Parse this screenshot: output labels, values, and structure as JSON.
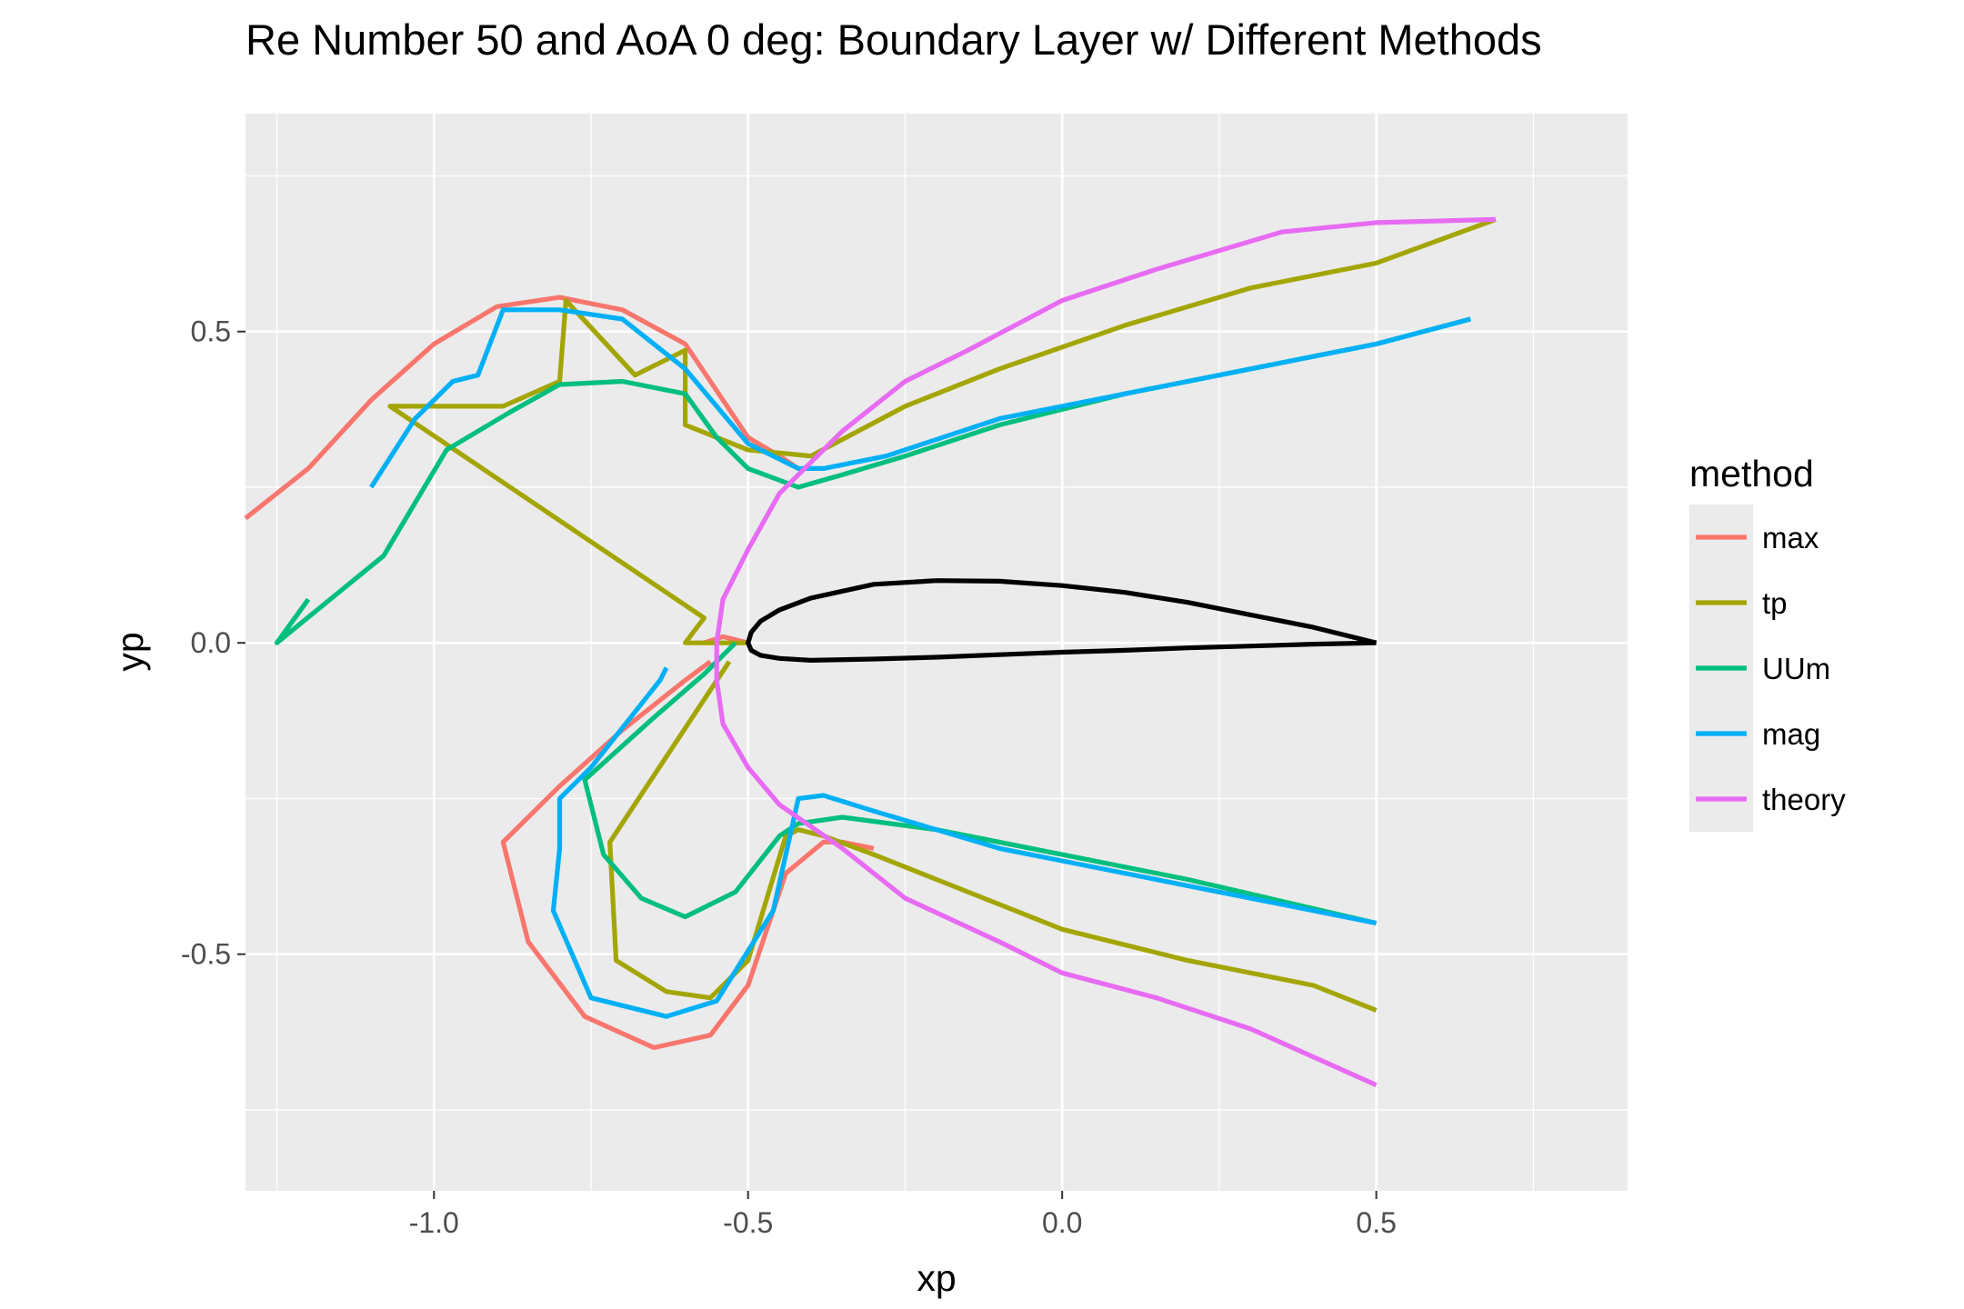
{
  "chart_data": {
    "type": "line",
    "title": "Re Number 50 and AoA 0 deg: Boundary Layer w/ Different Methods",
    "xlabel": "xp",
    "ylabel": "yp",
    "xlim": [
      -1.3,
      0.9
    ],
    "ylim": [
      -0.88,
      0.85
    ],
    "x_ticks": [
      -1.0,
      -0.5,
      0.0,
      0.5
    ],
    "x_tick_labels": [
      "-1.0",
      "-0.5",
      "0.0",
      "0.5"
    ],
    "y_ticks": [
      -0.5,
      0.0,
      0.5
    ],
    "y_tick_labels": [
      "-0.5",
      "0.0",
      "0.5"
    ],
    "grid": true,
    "legend": {
      "title": "method",
      "placement": "right"
    },
    "airfoil": {
      "color": "#000000",
      "x": [
        0.5,
        0.4,
        0.3,
        0.2,
        0.1,
        0.0,
        -0.1,
        -0.2,
        -0.3,
        -0.4,
        -0.45,
        -0.48,
        -0.495,
        -0.5,
        -0.495,
        -0.48,
        -0.45,
        -0.4,
        -0.3,
        -0.2,
        -0.1,
        0.0,
        0.1,
        0.2,
        0.3,
        0.4,
        0.5
      ],
      "y": [
        0.0,
        0.025,
        0.045,
        0.065,
        0.081,
        0.092,
        0.099,
        0.1,
        0.094,
        0.072,
        0.053,
        0.035,
        0.017,
        0.0,
        -0.012,
        -0.02,
        -0.025,
        -0.028,
        -0.026,
        -0.023,
        -0.019,
        -0.015,
        -0.012,
        -0.008,
        -0.005,
        -0.002,
        0.0
      ]
    },
    "series": [
      {
        "name": "max",
        "color": "#F8766D",
        "x": [
          -1.3,
          -1.2,
          -1.1,
          -1.0,
          -0.9,
          -0.8,
          -0.7,
          -0.6,
          -0.5,
          -0.45,
          -0.42,
          null,
          -0.57,
          -0.54,
          -0.5,
          null,
          -0.56,
          -0.6,
          -0.7,
          -0.8,
          -0.89,
          -0.85,
          -0.76,
          -0.65,
          -0.56,
          -0.5,
          -0.44,
          -0.38,
          -0.35,
          -0.3
        ],
        "y": [
          0.2,
          0.28,
          0.39,
          0.48,
          0.54,
          0.555,
          0.535,
          0.48,
          0.33,
          0.3,
          0.28,
          null,
          0.0,
          0.01,
          0.0,
          null,
          -0.03,
          -0.06,
          -0.14,
          -0.23,
          -0.32,
          -0.48,
          -0.6,
          -0.65,
          -0.63,
          -0.55,
          -0.37,
          -0.32,
          -0.32,
          -0.33
        ]
      },
      {
        "name": "tp",
        "color": "#A3A500",
        "x": [
          0.69,
          0.5,
          0.3,
          0.1,
          -0.1,
          -0.25,
          -0.4,
          -0.5,
          -0.6,
          -0.6,
          -0.68,
          -0.79,
          -0.8,
          -0.89,
          -1.07,
          -0.57,
          -0.6,
          -0.5,
          null,
          -0.53,
          -0.72,
          -0.71,
          -0.63,
          -0.56,
          -0.5,
          -0.44,
          -0.42,
          -0.38,
          -0.3,
          -0.2,
          0.0,
          0.2,
          0.4,
          0.5
        ],
        "y": [
          0.68,
          0.61,
          0.57,
          0.51,
          0.44,
          0.38,
          0.3,
          0.31,
          0.35,
          0.47,
          0.43,
          0.55,
          0.42,
          0.38,
          0.38,
          0.04,
          0.0,
          0.0,
          null,
          -0.03,
          -0.32,
          -0.51,
          -0.56,
          -0.57,
          -0.51,
          -0.31,
          -0.3,
          -0.31,
          -0.34,
          -0.38,
          -0.46,
          -0.51,
          -0.55,
          -0.59
        ]
      },
      {
        "name": "UUm",
        "color": "#00BF7D",
        "x": [
          0.65,
          0.5,
          0.3,
          0.1,
          -0.1,
          -0.25,
          -0.35,
          -0.42,
          -0.5,
          -0.55,
          -0.6,
          -0.7,
          -0.8,
          -0.88,
          -0.98,
          -1.08,
          -1.25,
          -1.2,
          null,
          -0.52,
          -0.57,
          -0.65,
          -0.76,
          -0.73,
          -0.67,
          -0.6,
          -0.52,
          -0.45,
          -0.42,
          -0.35,
          -0.2,
          0.0,
          0.2,
          0.5
        ],
        "y": [
          0.52,
          0.48,
          0.44,
          0.4,
          0.35,
          0.3,
          0.27,
          0.25,
          0.28,
          0.33,
          0.4,
          0.42,
          0.415,
          0.37,
          0.31,
          0.14,
          0.0,
          0.07,
          null,
          0.0,
          -0.05,
          -0.12,
          -0.22,
          -0.34,
          -0.41,
          -0.44,
          -0.4,
          -0.31,
          -0.29,
          -0.28,
          -0.3,
          -0.34,
          -0.38,
          -0.45
        ]
      },
      {
        "name": "mag",
        "color": "#00B0F6",
        "x": [
          0.65,
          0.5,
          0.3,
          0.1,
          -0.1,
          -0.28,
          -0.38,
          -0.42,
          -0.5,
          -0.6,
          -0.7,
          -0.8,
          -0.89,
          -0.93,
          -0.97,
          -1.03,
          -1.1,
          null,
          -0.63,
          -0.64,
          -0.75,
          -0.8,
          -0.8,
          -0.81,
          -0.75,
          -0.63,
          -0.55,
          -0.46,
          -0.42,
          -0.38,
          -0.3,
          -0.1,
          0.0,
          0.2,
          0.5
        ],
        "y": [
          0.52,
          0.48,
          0.44,
          0.4,
          0.36,
          0.3,
          0.28,
          0.28,
          0.32,
          0.44,
          0.52,
          0.535,
          0.535,
          0.43,
          0.42,
          0.36,
          0.25,
          null,
          -0.04,
          -0.06,
          -0.2,
          -0.25,
          -0.33,
          -0.43,
          -0.57,
          -0.6,
          -0.575,
          -0.43,
          -0.25,
          -0.245,
          -0.27,
          -0.33,
          -0.35,
          -0.39,
          -0.45
        ]
      },
      {
        "name": "theory",
        "color": "#E76BF3",
        "x": [
          0.69,
          0.5,
          0.35,
          0.15,
          0.0,
          -0.15,
          -0.25,
          -0.35,
          -0.45,
          -0.5,
          -0.54,
          -0.55,
          -0.55,
          -0.54,
          -0.5,
          -0.45,
          -0.35,
          -0.25,
          -0.1,
          0.0,
          0.15,
          0.3,
          0.5
        ],
        "y": [
          0.68,
          0.675,
          0.66,
          0.6,
          0.55,
          0.47,
          0.42,
          0.34,
          0.24,
          0.15,
          0.07,
          0.0,
          -0.06,
          -0.13,
          -0.2,
          -0.26,
          -0.33,
          -0.41,
          -0.48,
          -0.53,
          -0.57,
          -0.62,
          -0.71
        ]
      }
    ]
  }
}
